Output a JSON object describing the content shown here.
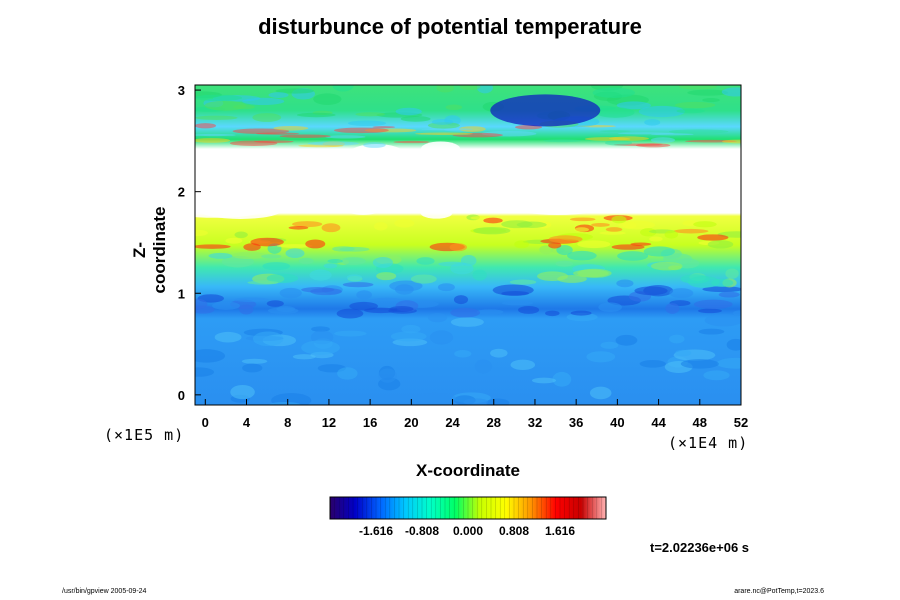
{
  "chart_data": {
    "type": "heatmap",
    "title": "disturbunce of potential temperature",
    "xlabel": "X-coordinate",
    "ylabel": "Z-coordinate",
    "x_scale_label": "(×1E4 m)",
    "y_scale_label": "(×1E5 m)",
    "xlim": [
      -1,
      52
    ],
    "ylim": [
      -0.1,
      3.05
    ],
    "x_ticks": [
      "0",
      "4",
      "8",
      "12",
      "16",
      "20",
      "24",
      "28",
      "32",
      "36",
      "40",
      "44",
      "48",
      "52"
    ],
    "y_ticks": [
      "0",
      "1",
      "2",
      "3"
    ],
    "colorbar": {
      "range": [
        -2.424,
        2.424
      ],
      "tick_labels": [
        "-1.616",
        "-0.808",
        "0.000",
        "0.808",
        "1.616"
      ],
      "colors": [
        "#2a006a",
        "#0000c8",
        "#0064ff",
        "#00c8ff",
        "#00ffc8",
        "#00ff64",
        "#c8ff00",
        "#ffff00",
        "#ff9600",
        "#ff0000",
        "#c80000",
        "#ffb4b4"
      ]
    },
    "bands": [
      {
        "z_from": -0.1,
        "z_to": 0.8,
        "dominant_value": -1.1,
        "description_color": "#1e90ff"
      },
      {
        "z_from": 0.8,
        "z_to": 1.1,
        "dominant_value": -0.9,
        "description_color": "#2f7cf0"
      },
      {
        "z_from": 1.1,
        "z_to": 1.45,
        "dominant_value": 0.1,
        "description_color": "#40e0b0"
      },
      {
        "z_from": 1.45,
        "z_to": 1.75,
        "dominant_value": 0.9,
        "description_color": "#b4ff00"
      },
      {
        "z_from": 1.75,
        "z_to": 2.45,
        "dominant_value": null,
        "description_color": "#ffffff"
      },
      {
        "z_from": 2.45,
        "z_to": 2.65,
        "dominant_value": 0.3,
        "description_color": "#40e8a0"
      },
      {
        "z_from": 2.65,
        "z_to": 3.05,
        "dominant_value": 0.2,
        "description_color": "#22e07a"
      }
    ]
  },
  "time_label": "t=2.02236e+06 s",
  "footer_left": "/usr/bin/gpview 2005-09-24",
  "footer_right": "arare.nc@PotTemp,t=2023.6"
}
